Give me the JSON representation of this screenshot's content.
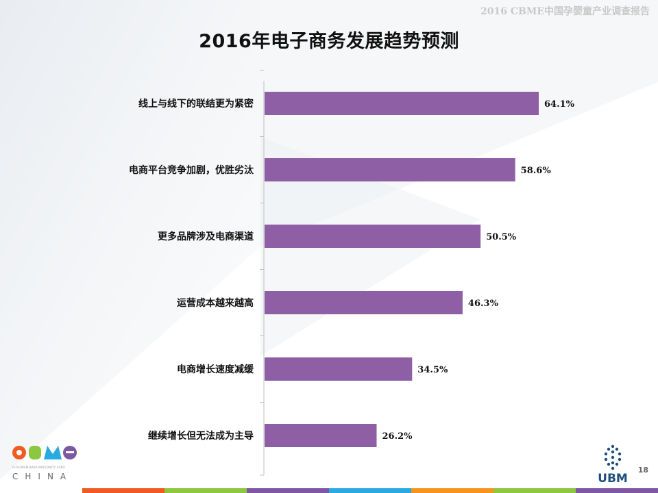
{
  "header": {
    "report_title": "2016 CBME中国孕婴童产业调查报告"
  },
  "slide": {
    "title": "2016年电子商务发展趋势预测",
    "page_number": "18"
  },
  "logos": {
    "cbme_text": "CBME",
    "cbme_subtitle": "CHILDREN·BABY·MATERNITY EXPO",
    "cbme_country": "CHINA",
    "ubm_text": "UBM"
  },
  "colors": {
    "bar": "#8f5fa6",
    "axis": "#bfbfbf",
    "bottom_stripes": [
      "#f15a22",
      "#8dc63f",
      "#7e57a3",
      "#29abe2",
      "#f7941d",
      "#8dc63f",
      "#7e57a3"
    ]
  },
  "chart_data": {
    "type": "bar",
    "orientation": "horizontal",
    "categories": [
      "线上与线下的联结更为紧密",
      "电商平台竞争加剧，优胜劣汰",
      "更多品牌涉及电商渠道",
      "运营成本越来越高",
      "电商增长速度减缓",
      "继续增长但无法成为主导"
    ],
    "values": [
      64.1,
      58.6,
      50.5,
      46.3,
      34.5,
      26.2
    ],
    "value_labels": [
      "64.1%",
      "58.6%",
      "50.5%",
      "46.3%",
      "34.5%",
      "26.2%"
    ],
    "xlim": [
      0,
      100
    ],
    "grid": false
  }
}
